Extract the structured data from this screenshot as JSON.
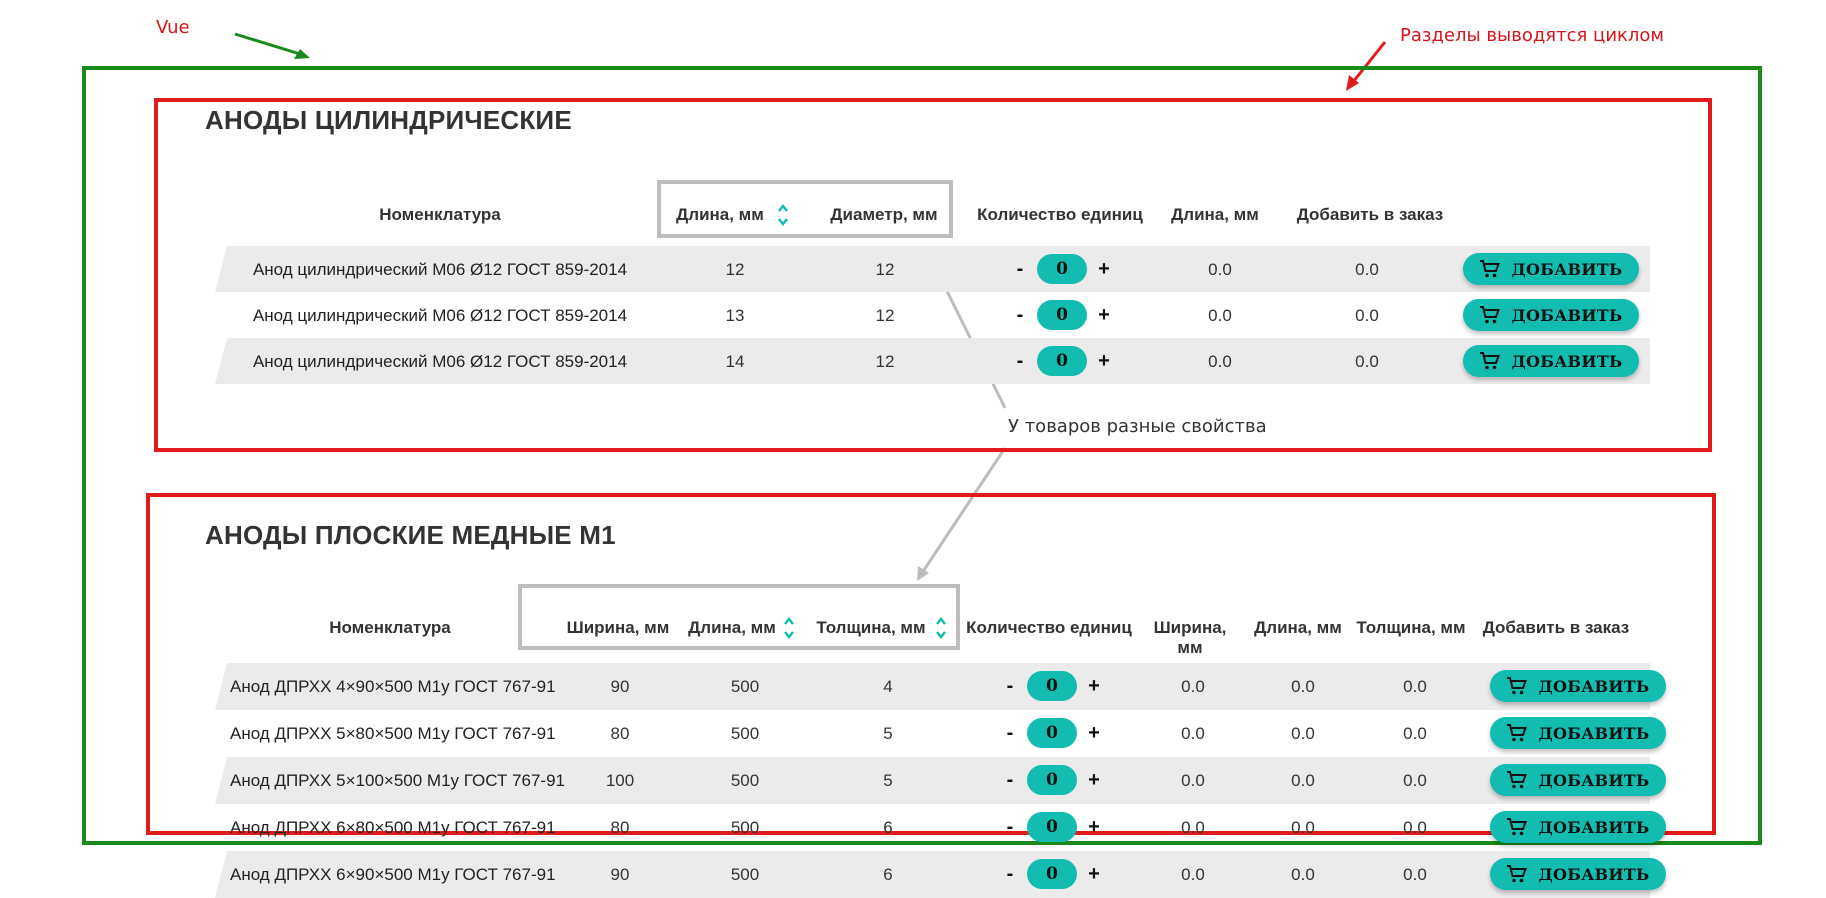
{
  "annotations": {
    "vue_label": "Vue",
    "sections_loop_label": "Разделы выводятся циклом",
    "props_label": "У товаров разные свойства"
  },
  "colors": {
    "accent": "#12bcb0",
    "green_frame": "#1a8a1a",
    "red_frame": "#e01b1b"
  },
  "icons": {
    "cart": "cart-icon",
    "sort": "sort-arrows-icon"
  },
  "section1": {
    "title": "АНОДЫ ЦИЛИНДРИЧЕСКИЕ",
    "headers": {
      "name": "Номенклатура",
      "length": "Длина, мм",
      "diameter": "Диаметр, мм",
      "qty": "Количество единиц",
      "total_length": "Длина, мм",
      "add": "Добавить в заказ"
    },
    "rows": [
      {
        "name": "Анод цилиндрический М06 Ø12 ГОСТ 859-2014",
        "length": "12",
        "diameter": "12",
        "qty": "0",
        "total_length": "0.0",
        "add_total": "0.0",
        "button": "ДОБАВИТЬ"
      },
      {
        "name": "Анод цилиндрический М06 Ø12 ГОСТ 859-2014",
        "length": "13",
        "diameter": "12",
        "qty": "0",
        "total_length": "0.0",
        "add_total": "0.0",
        "button": "ДОБАВИТЬ"
      },
      {
        "name": "Анод цилиндрический М06 Ø12 ГОСТ 859-2014",
        "length": "14",
        "diameter": "12",
        "qty": "0",
        "total_length": "0.0",
        "add_total": "0.0",
        "button": "ДОБАВИТЬ"
      }
    ]
  },
  "section2": {
    "title": "АНОДЫ ПЛОСКИЕ МЕДНЫЕ М1",
    "headers": {
      "name": "Номенклатура",
      "width": "Ширина, мм",
      "length": "Длина, мм",
      "thickness": "Толщина, мм",
      "qty": "Количество единиц",
      "total_width": "Ширина, мм",
      "total_length": "Длина, мм",
      "total_thickness": "Толщина, мм",
      "add": "Добавить в заказ"
    },
    "rows": [
      {
        "name": "Анод ДПРХХ 4×90×500 М1у ГОСТ 767-91",
        "width": "90",
        "length": "500",
        "thickness": "4",
        "qty": "0",
        "tw": "0.0",
        "tl": "0.0",
        "tt": "0.0",
        "button": "ДОБАВИТЬ"
      },
      {
        "name": "Анод ДПРХХ 5×80×500 М1у ГОСТ 767-91",
        "width": "80",
        "length": "500",
        "thickness": "5",
        "qty": "0",
        "tw": "0.0",
        "tl": "0.0",
        "tt": "0.0",
        "button": "ДОБАВИТЬ"
      },
      {
        "name": "Анод ДПРХХ 5×100×500 М1у ГОСТ 767-91",
        "width": "100",
        "length": "500",
        "thickness": "5",
        "qty": "0",
        "tw": "0.0",
        "tl": "0.0",
        "tt": "0.0",
        "button": "ДОБАВИТЬ"
      },
      {
        "name": "Анод ДПРХХ 6×80×500 М1у ГОСТ 767-91",
        "width": "80",
        "length": "500",
        "thickness": "6",
        "qty": "0",
        "tw": "0.0",
        "tl": "0.0",
        "tt": "0.0",
        "button": "ДОБАВИТЬ"
      },
      {
        "name": "Анод ДПРХХ 6×90×500 М1у ГОСТ 767-91",
        "width": "90",
        "length": "500",
        "thickness": "6",
        "qty": "0",
        "tw": "0.0",
        "tl": "0.0",
        "tt": "0.0",
        "button": "ДОБАВИТЬ"
      }
    ]
  }
}
